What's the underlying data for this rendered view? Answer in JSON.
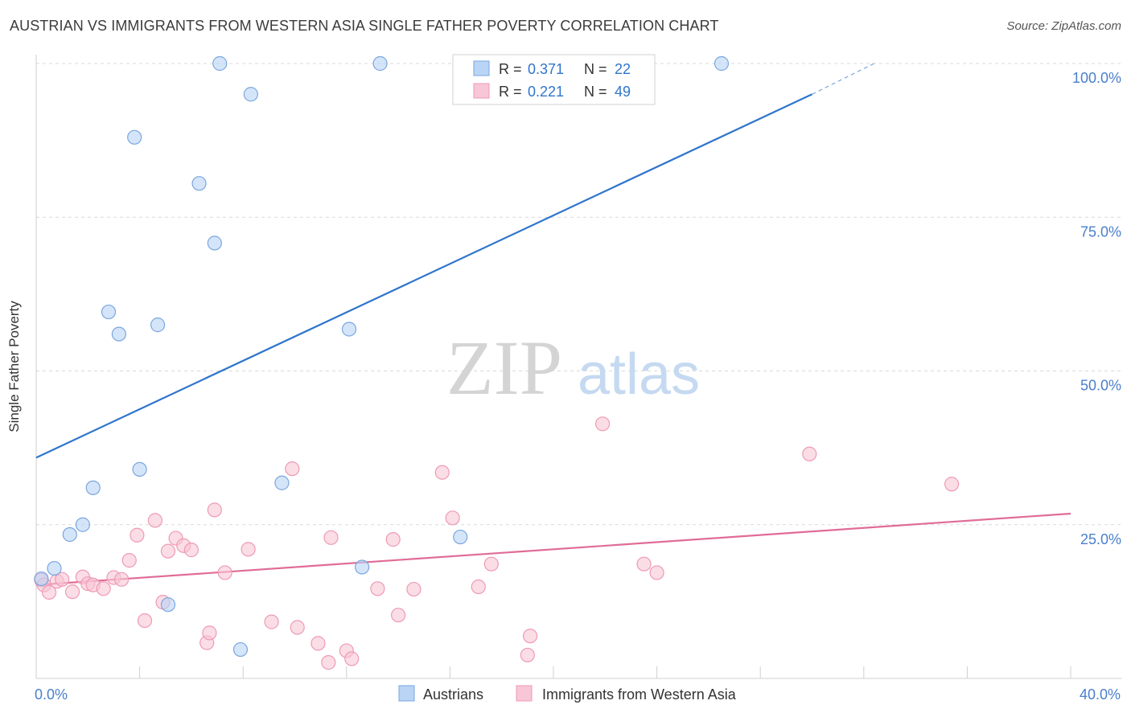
{
  "title": "AUSTRIAN VS IMMIGRANTS FROM WESTERN ASIA SINGLE FATHER POVERTY CORRELATION CHART",
  "source": "Source: ZipAtlas.com",
  "watermark": {
    "zip": "ZIP",
    "atlas": "atlas"
  },
  "colors": {
    "blue": "#2f75cc",
    "blue_fill": "#b9d4f5",
    "blue_stroke": "#7aa6e0",
    "pink": "#e06c97",
    "pink_fill": "#f8c6d6",
    "pink_stroke": "#ee9ab6",
    "tick_label": "#4a7fcc",
    "grid": "#d9d9d9"
  },
  "chart_data": {
    "type": "scatter",
    "title": "AUSTRIAN VS IMMIGRANTS FROM WESTERN ASIA SINGLE FATHER POVERTY CORRELATION CHART",
    "xlabel": "",
    "ylabel": "Single Father Poverty",
    "xlim": [
      0,
      40
    ],
    "ylim": [
      0,
      101
    ],
    "x_tick_labels": [
      {
        "value": 0,
        "label": "0.0%"
      },
      {
        "value": 40,
        "label": "40.0%"
      }
    ],
    "y_tick_labels": [
      {
        "value": 25,
        "label": "25.0%"
      },
      {
        "value": 50,
        "label": "50.0%"
      },
      {
        "value": 75,
        "label": "75.0%"
      },
      {
        "value": 100,
        "label": "100.0%"
      }
    ],
    "legend_stats": [
      {
        "r_label": "R = ",
        "r_value": "0.371",
        "n_label": "N = ",
        "n_value": "22"
      },
      {
        "r_label": "R = ",
        "r_value": "0.221",
        "n_label": "N = ",
        "n_value": "49"
      }
    ],
    "series": [
      {
        "name": "Austrians",
        "color": "#2f75cc",
        "points": [
          [
            0.2,
            16.2
          ],
          [
            0.7,
            17.9
          ],
          [
            1.3,
            23.4
          ],
          [
            1.8,
            25.0
          ],
          [
            2.2,
            31.0
          ],
          [
            2.8,
            59.6
          ],
          [
            3.2,
            56.0
          ],
          [
            3.8,
            88.0
          ],
          [
            4.0,
            34.0
          ],
          [
            4.7,
            57.5
          ],
          [
            5.1,
            12.0
          ],
          [
            6.3,
            80.5
          ],
          [
            6.9,
            70.8
          ],
          [
            7.1,
            100.0
          ],
          [
            7.9,
            4.7
          ],
          [
            8.3,
            95.0
          ],
          [
            9.5,
            31.8
          ],
          [
            12.1,
            56.8
          ],
          [
            12.6,
            18.1
          ],
          [
            13.3,
            100.0
          ],
          [
            16.4,
            23.0
          ],
          [
            26.5,
            100.0
          ]
        ],
        "trend": {
          "x0": 0,
          "y0": 35.9,
          "x1": 30,
          "y1": 95.0,
          "dash_x1": 32.4,
          "dash_y1": 100.0
        }
      },
      {
        "name": "Immigrants from Western Asia",
        "color": "#e06c97",
        "points": [
          [
            0.2,
            16.0
          ],
          [
            0.3,
            15.2
          ],
          [
            0.5,
            14.0
          ],
          [
            0.8,
            15.8
          ],
          [
            1.0,
            16.1
          ],
          [
            1.4,
            14.1
          ],
          [
            1.8,
            16.5
          ],
          [
            2.0,
            15.4
          ],
          [
            2.2,
            15.2
          ],
          [
            2.6,
            14.6
          ],
          [
            3.0,
            16.4
          ],
          [
            3.3,
            16.1
          ],
          [
            3.6,
            19.2
          ],
          [
            3.9,
            23.3
          ],
          [
            4.2,
            9.4
          ],
          [
            4.6,
            25.7
          ],
          [
            4.9,
            12.4
          ],
          [
            5.1,
            20.7
          ],
          [
            5.4,
            22.8
          ],
          [
            5.7,
            21.6
          ],
          [
            6.0,
            20.9
          ],
          [
            6.6,
            5.8
          ],
          [
            6.7,
            7.4
          ],
          [
            6.9,
            27.4
          ],
          [
            7.3,
            17.2
          ],
          [
            8.2,
            21.0
          ],
          [
            9.1,
            9.2
          ],
          [
            9.9,
            34.1
          ],
          [
            10.1,
            8.3
          ],
          [
            10.9,
            5.7
          ],
          [
            11.3,
            2.6
          ],
          [
            11.4,
            22.9
          ],
          [
            12.0,
            4.5
          ],
          [
            12.2,
            3.2
          ],
          [
            13.2,
            14.6
          ],
          [
            13.8,
            22.6
          ],
          [
            14.0,
            10.3
          ],
          [
            14.6,
            14.5
          ],
          [
            15.7,
            33.5
          ],
          [
            16.1,
            26.1
          ],
          [
            17.1,
            14.9
          ],
          [
            17.6,
            18.6
          ],
          [
            19.0,
            3.8
          ],
          [
            19.1,
            6.9
          ],
          [
            21.9,
            41.4
          ],
          [
            23.5,
            18.6
          ],
          [
            24.0,
            17.2
          ],
          [
            29.9,
            36.5
          ],
          [
            35.4,
            31.6
          ]
        ],
        "trend": {
          "x0": 0,
          "y0": 15.2,
          "x1": 40,
          "y1": 26.8
        }
      }
    ]
  }
}
